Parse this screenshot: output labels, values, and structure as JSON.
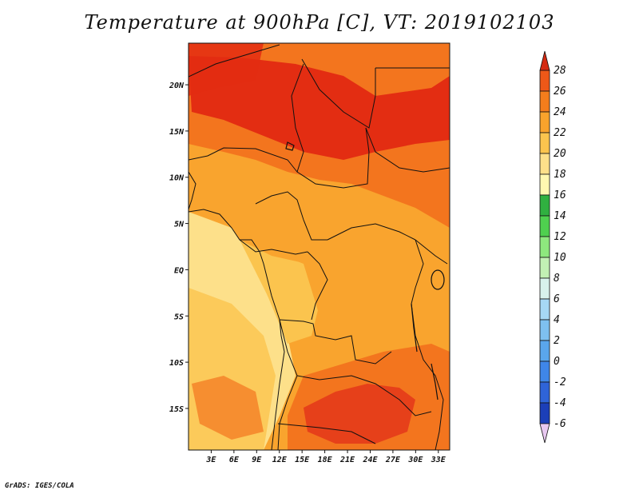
{
  "title": "Temperature at 900hPa [C], VT: 2019102103",
  "footer": "GrADS: IGES/COLA",
  "map": {
    "lon_range": [
      0,
      34.5
    ],
    "lat_range": [
      -19.5,
      24.5
    ],
    "lon_ticks": [
      "3E",
      "6E",
      "9E",
      "12E",
      "15E",
      "18E",
      "21E",
      "24E",
      "27E",
      "30E",
      "33E"
    ],
    "lat_ticks": [
      "20N",
      "15N",
      "10N",
      "5N",
      "EQ",
      "5S",
      "10S",
      "15S"
    ]
  },
  "colorbar": {
    "levels": [
      "28",
      "26",
      "24",
      "22",
      "20",
      "18",
      "16",
      "14",
      "12",
      "10",
      "8",
      "6",
      "4",
      "2",
      "0",
      "-2",
      "-4",
      "-6"
    ],
    "colors": [
      "#e8c8f0",
      "#0a1070",
      "#1c3fb8",
      "#2f64d8",
      "#3f86e8",
      "#5aa6ec",
      "#7ec0f0",
      "#a6d8f4",
      "#d8f2ec",
      "#c2f0b4",
      "#8ee87e",
      "#4fd04f",
      "#30b040",
      "#fff8b0",
      "#fde08a",
      "#fbc44e",
      "#f9a32c",
      "#f47d1c",
      "#ee5818",
      "#d42a12"
    ]
  },
  "regions": {
    "sahara_hot": "#e32d12",
    "sahel_warm": "#f3751e",
    "savanna": "#f9a42e",
    "coast_mild": "#fbc44e",
    "gulf_ocean": "#fde08a",
    "zambia_hot": "#e6401a"
  }
}
